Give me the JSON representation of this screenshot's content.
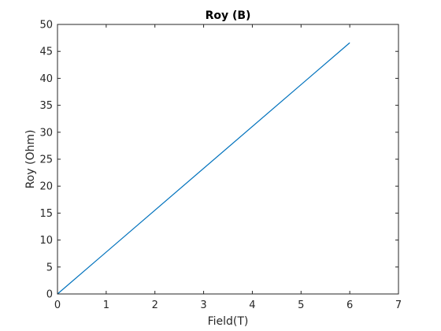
{
  "chart_data": {
    "type": "line",
    "title": "Roy (B)",
    "xlabel": "Field(T)",
    "ylabel": "Roy (Ohm)",
    "xlim": [
      0,
      7
    ],
    "ylim": [
      0,
      50
    ],
    "xticks": [
      0,
      1,
      2,
      3,
      4,
      5,
      6,
      7
    ],
    "yticks": [
      0,
      5,
      10,
      15,
      20,
      25,
      30,
      35,
      40,
      45,
      50
    ],
    "grid": false,
    "series": [
      {
        "color": "#0072BD",
        "x": [
          0,
          6
        ],
        "y": [
          0,
          46.6
        ]
      }
    ]
  }
}
